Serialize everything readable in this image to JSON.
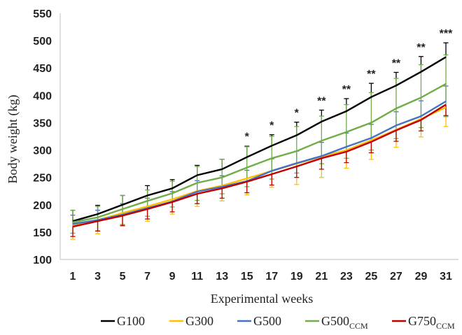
{
  "chart_data": {
    "type": "line",
    "title": "",
    "xlabel": "Experimental weeks",
    "ylabel": "Body weight (kg)",
    "x": [
      1,
      3,
      5,
      7,
      9,
      11,
      13,
      15,
      17,
      19,
      21,
      23,
      25,
      27,
      29,
      31
    ],
    "ylim": [
      100,
      550
    ],
    "yticks": [
      100,
      150,
      200,
      250,
      300,
      350,
      400,
      450,
      500,
      550
    ],
    "grid": false,
    "legend_position": "bottom",
    "series": [
      {
        "name": "G100",
        "name_sub": "",
        "color": "#000000",
        "values": [
          170,
          183,
          200,
          217,
          230,
          254,
          265,
          287,
          308,
          327,
          352,
          371,
          397,
          418,
          443,
          470
        ],
        "error_up": [
          20,
          16,
          17,
          18,
          16,
          18,
          18,
          20,
          20,
          24,
          21,
          23,
          25,
          24,
          28,
          26
        ]
      },
      {
        "name": "G300",
        "name_sub": "",
        "color": "#FFC000",
        "values": [
          162,
          172,
          185,
          197,
          210,
          225,
          235,
          248,
          262,
          275,
          288,
          300,
          318,
          337,
          357,
          378
        ],
        "error_down": [
          25,
          25,
          24,
          27,
          27,
          28,
          28,
          30,
          30,
          38,
          38,
          33,
          35,
          32,
          33,
          35
        ]
      },
      {
        "name": "G500",
        "name_sub": "",
        "color": "#4472C4",
        "values": [
          165,
          172,
          182,
          194,
          206,
          224,
          233,
          243,
          262,
          276,
          289,
          306,
          322,
          345,
          362,
          389
        ],
        "error_up": [
          16,
          18,
          20,
          18,
          18,
          20,
          20,
          20,
          22,
          22,
          25,
          25,
          25,
          25,
          28,
          28
        ]
      },
      {
        "name": "G500",
        "name_sub": "CCM",
        "color": "#70AD47",
        "values": [
          168,
          177,
          192,
          207,
          221,
          240,
          250,
          268,
          285,
          298,
          317,
          333,
          350,
          376,
          396,
          421
        ],
        "error_up": [
          22,
          20,
          25,
          20,
          22,
          30,
          33,
          38,
          40,
          45,
          45,
          50,
          55,
          55,
          60,
          53
        ],
        "error_down": [
          20,
          25,
          28,
          28,
          25,
          32,
          30,
          35,
          38,
          40,
          42,
          48,
          50,
          55,
          55,
          60
        ]
      },
      {
        "name": "G750",
        "name_sub": "CCM",
        "color": "#C00000",
        "values": [
          160,
          170,
          180,
          192,
          205,
          220,
          230,
          242,
          256,
          270,
          285,
          297,
          315,
          336,
          355,
          383
        ],
        "error_down": [
          18,
          18,
          18,
          18,
          18,
          18,
          18,
          20,
          20,
          20,
          20,
          20,
          20,
          20,
          20,
          20
        ]
      }
    ],
    "annotations": [
      {
        "x": 15,
        "text": "*",
        "value": 308
      },
      {
        "x": 17,
        "text": "*",
        "value": 328
      },
      {
        "x": 19,
        "text": "*",
        "value": 351
      },
      {
        "x": 21,
        "text": "**",
        "value": 373
      },
      {
        "x": 23,
        "text": "**",
        "value": 394
      },
      {
        "x": 25,
        "text": "**",
        "value": 422
      },
      {
        "x": 27,
        "text": "**",
        "value": 442
      },
      {
        "x": 29,
        "text": "**",
        "value": 471
      },
      {
        "x": 31,
        "text": "***",
        "value": 496
      }
    ]
  }
}
